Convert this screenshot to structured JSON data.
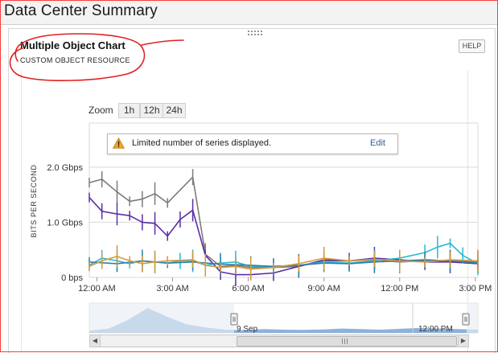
{
  "page": {
    "title": "Data Center Summary"
  },
  "widget": {
    "title": "Multiple Object Chart",
    "subtitle": "CUSTOM OBJECT RESOURCE",
    "help_label": "HELP"
  },
  "zoom": {
    "label": "Zoom",
    "options": [
      "1h",
      "12h",
      "24h"
    ]
  },
  "notice": {
    "text": "Limited number of series displayed.",
    "action": "Edit"
  },
  "colors": {
    "gray": "#7c7c7c",
    "purple": "#5a2ea6",
    "cyan": "#27b8d6",
    "teal": "#2f7fa8",
    "orange": "#d69a3c",
    "navigator": "#6fa0d0",
    "annotation": "#e02020"
  },
  "chart_data": {
    "type": "line",
    "ylabel": "BITS PER SECOND",
    "y_ticks": [
      "0 bps",
      "1.0 Gbps",
      "2.0 Gbps"
    ],
    "y_tick_values": [
      0,
      1.0,
      2.0
    ],
    "ylim": [
      0,
      2.8
    ],
    "x_ticks": [
      "12:00 AM",
      "3:00 AM",
      "6:00 AM",
      "9:00 AM",
      "12:00 PM",
      "3:00 PM"
    ],
    "x_tick_hours": [
      0,
      3,
      6,
      9,
      12,
      15
    ],
    "xlim": [
      -0.3,
      15.1
    ],
    "grid": true,
    "legend": "none",
    "series": [
      {
        "color_key": "gray",
        "x": [
          -0.3,
          0.2,
          0.8,
          1.3,
          1.8,
          2.3,
          2.8,
          3.8,
          4.3,
          4.9,
          5.5,
          6.1,
          7.0,
          8.0,
          9.0,
          10.0,
          11.0,
          12.0,
          13.0,
          14.0,
          15.1
        ],
        "y": [
          1.72,
          1.78,
          1.55,
          1.38,
          1.42,
          1.52,
          1.35,
          1.82,
          0.42,
          0.2,
          0.22,
          0.18,
          0.18,
          0.2,
          0.3,
          0.3,
          0.32,
          0.28,
          0.3,
          0.3,
          0.28
        ]
      },
      {
        "color_key": "purple",
        "x": [
          -0.3,
          0.2,
          0.8,
          1.3,
          1.8,
          2.3,
          2.8,
          3.3,
          3.8,
          4.3,
          4.9,
          5.5,
          6.1,
          7.0,
          8.0,
          9.0,
          10.0,
          11.0,
          12.0,
          13.0,
          14.0,
          15.1
        ],
        "y": [
          1.45,
          1.2,
          1.15,
          1.12,
          1.0,
          0.98,
          0.75,
          1.05,
          1.22,
          0.4,
          0.1,
          0.05,
          0.05,
          0.08,
          0.2,
          0.32,
          0.3,
          0.35,
          0.32,
          0.28,
          0.28,
          0.25
        ]
      },
      {
        "color_key": "cyan",
        "x": [
          -0.3,
          0.2,
          0.8,
          1.3,
          1.8,
          2.3,
          2.8,
          3.3,
          3.8,
          4.3,
          4.9,
          5.5,
          6.1,
          7.0,
          8.0,
          9.0,
          10.0,
          11.0,
          12.0,
          13.0,
          13.5,
          14.0,
          14.5,
          15.1
        ],
        "y": [
          0.22,
          0.35,
          0.3,
          0.25,
          0.3,
          0.28,
          0.26,
          0.3,
          0.3,
          0.22,
          0.26,
          0.28,
          0.2,
          0.2,
          0.22,
          0.28,
          0.26,
          0.3,
          0.35,
          0.45,
          0.55,
          0.62,
          0.4,
          0.25
        ]
      },
      {
        "color_key": "teal",
        "x": [
          -0.3,
          0.8,
          1.8,
          2.8,
          3.8,
          4.9,
          6.1,
          7.0,
          8.0,
          9.0,
          10.0,
          11.0,
          12.0,
          13.0,
          14.0,
          15.1
        ],
        "y": [
          0.28,
          0.25,
          0.3,
          0.26,
          0.28,
          0.24,
          0.22,
          0.2,
          0.22,
          0.26,
          0.25,
          0.28,
          0.3,
          0.32,
          0.3,
          0.26
        ]
      },
      {
        "color_key": "orange",
        "x": [
          -0.3,
          0.2,
          0.8,
          1.3,
          1.8,
          2.3,
          2.8,
          3.8,
          4.3,
          4.9,
          5.5,
          6.1,
          7.0,
          8.0,
          9.0,
          10.0,
          11.0,
          12.0,
          13.0,
          14.0,
          15.1
        ],
        "y": [
          0.2,
          0.3,
          0.38,
          0.3,
          0.25,
          0.28,
          0.3,
          0.32,
          0.22,
          0.18,
          0.2,
          0.15,
          0.18,
          0.25,
          0.35,
          0.3,
          0.33,
          0.3,
          0.28,
          0.32,
          0.3
        ]
      }
    ],
    "navigator": {
      "labels": [
        "9 Sep",
        "12:00 PM"
      ],
      "values": [
        0.2,
        0.4,
        1.2,
        2.3,
        1.5,
        0.8,
        0.5,
        0.3,
        0.25,
        0.35,
        0.3,
        0.28,
        0.32,
        0.4,
        0.35,
        0.3,
        0.38,
        0.45,
        0.4,
        0.35,
        0.3
      ]
    }
  }
}
